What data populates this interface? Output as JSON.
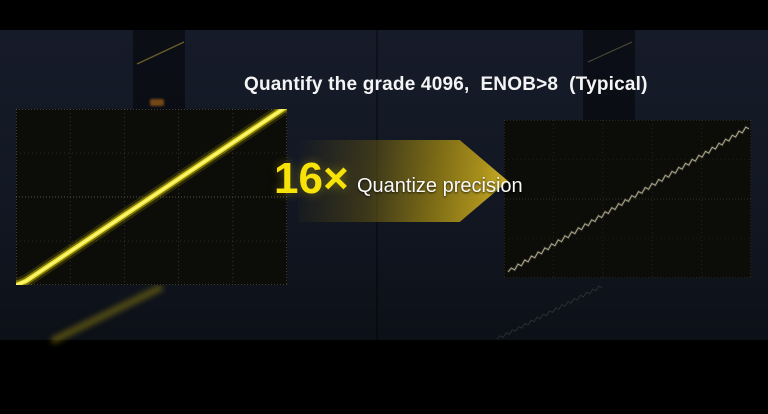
{
  "header": {
    "title": "Quantify the grade 4096,  ENOB>8  (Typical)"
  },
  "callout": {
    "multiplier": "16×",
    "label": "Quantize precision"
  },
  "panels": {
    "left_scope": {
      "trace": "smooth-ramp",
      "brightness": "high"
    },
    "right_scope": {
      "trace": "stepped-quantized-ramp",
      "brightness": "dim"
    }
  },
  "colors": {
    "background_black": "#000000",
    "background_navy": "#121723",
    "panel_black": "#0c0c08",
    "gridline": "#6a695c",
    "trace_yellow": "#efe332",
    "trace_core": "#fdf87d",
    "dim_trace": "#b3ae93",
    "accent_yellow": "#f8e308",
    "arrow_yellow": "#c9ad24",
    "title_white": "#f4f4f4"
  }
}
